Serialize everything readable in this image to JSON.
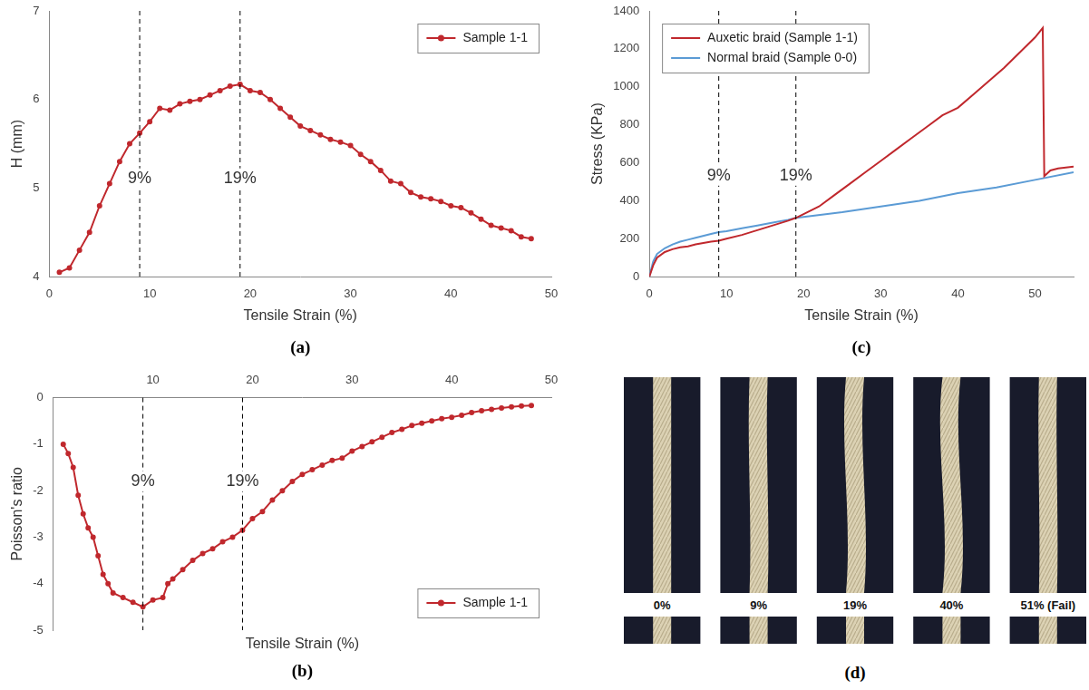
{
  "chart_data": [
    {
      "type": "line",
      "title": "(a)",
      "x_label": "Tensile Strain (%)",
      "y_label": "H (mm)",
      "xlim": [
        0,
        50
      ],
      "xticks": [
        0,
        10,
        20,
        30,
        40,
        50
      ],
      "ylim": [
        4,
        7
      ],
      "yticks": [
        4,
        5,
        6,
        7
      ],
      "grid": false,
      "legend": "upper right",
      "annotations": [
        {
          "x": 9,
          "text": "9%"
        },
        {
          "x": 19,
          "text": "19%"
        }
      ],
      "series": [
        {
          "name": "Sample 1-1",
          "color": "#c0282d",
          "marker": "circle",
          "line_style": "solid",
          "x": [
            1,
            2,
            3,
            4,
            5,
            6,
            7,
            8,
            9,
            10,
            11,
            12,
            13,
            14,
            15,
            16,
            17,
            18,
            19,
            20,
            21,
            22,
            23,
            24,
            25,
            26,
            27,
            28,
            29,
            30,
            31,
            32,
            33,
            34,
            35,
            36,
            37,
            38,
            39,
            40,
            41,
            42,
            43,
            44,
            45,
            46,
            47,
            48
          ],
          "values": [
            4.05,
            4.1,
            4.3,
            4.5,
            4.8,
            5.05,
            5.3,
            5.5,
            5.62,
            5.75,
            5.9,
            5.88,
            5.95,
            5.98,
            6.0,
            6.05,
            6.1,
            6.15,
            6.17,
            6.1,
            6.08,
            6.0,
            5.9,
            5.8,
            5.7,
            5.65,
            5.6,
            5.55,
            5.52,
            5.48,
            5.38,
            5.3,
            5.2,
            5.08,
            5.05,
            4.95,
            4.9,
            4.88,
            4.85,
            4.8,
            4.78,
            4.72,
            4.65,
            4.58,
            4.55,
            4.52,
            4.45,
            4.43
          ]
        }
      ]
    },
    {
      "type": "line",
      "title": "(b)",
      "x_label": "Tensile Strain (%)",
      "y_label": "Poisson's ratio",
      "xlim": [
        0,
        50
      ],
      "xticks": [
        10,
        20,
        30,
        40,
        50
      ],
      "ylim": [
        -5,
        0
      ],
      "yticks": [
        -5,
        -4,
        -3,
        -2,
        -1,
        0
      ],
      "grid": false,
      "legend": "lower right",
      "annotations": [
        {
          "x": 9,
          "text": "9%"
        },
        {
          "x": 19,
          "text": "19%"
        }
      ],
      "series": [
        {
          "name": "Sample 1-1",
          "color": "#c0282d",
          "marker": "circle",
          "line_style": "solid",
          "x": [
            1,
            1.5,
            2,
            2.5,
            3,
            3.5,
            4,
            4.5,
            5,
            5.5,
            6,
            7,
            8,
            9,
            10,
            11,
            11.5,
            12,
            13,
            14,
            15,
            16,
            17,
            18,
            19,
            20,
            21,
            22,
            23,
            24,
            25,
            26,
            27,
            28,
            29,
            30,
            31,
            32,
            33,
            34,
            35,
            36,
            37,
            38,
            39,
            40,
            41,
            42,
            43,
            44,
            45,
            46,
            47,
            48
          ],
          "values": [
            -1.0,
            -1.2,
            -1.5,
            -2.1,
            -2.5,
            -2.8,
            -3.0,
            -3.4,
            -3.8,
            -4.0,
            -4.2,
            -4.3,
            -4.4,
            -4.5,
            -4.35,
            -4.3,
            -4.0,
            -3.9,
            -3.7,
            -3.5,
            -3.35,
            -3.25,
            -3.1,
            -3.0,
            -2.85,
            -2.6,
            -2.45,
            -2.2,
            -2.0,
            -1.8,
            -1.65,
            -1.55,
            -1.45,
            -1.35,
            -1.3,
            -1.15,
            -1.05,
            -0.95,
            -0.85,
            -0.75,
            -0.68,
            -0.6,
            -0.55,
            -0.5,
            -0.45,
            -0.42,
            -0.38,
            -0.32,
            -0.28,
            -0.25,
            -0.22,
            -0.2,
            -0.18,
            -0.17
          ]
        }
      ]
    },
    {
      "type": "line",
      "title": "(c)",
      "x_label": "Tensile Strain (%)",
      "y_label": "Stress (KPa)",
      "xlim": [
        0,
        55
      ],
      "xticks": [
        0,
        10,
        20,
        30,
        40,
        50
      ],
      "ylim": [
        0,
        1400
      ],
      "yticks": [
        0,
        200,
        400,
        600,
        800,
        1000,
        1200,
        1400
      ],
      "grid": false,
      "legend": "upper left",
      "annotations": [
        {
          "x": 9,
          "text": "9%"
        },
        {
          "x": 19,
          "text": "19%"
        }
      ],
      "series": [
        {
          "name": "Auxetic braid (Sample 1-1)",
          "color": "#c0282d",
          "marker": "none",
          "line_style": "solid",
          "x": [
            0,
            0.5,
            1,
            2,
            3,
            4,
            5,
            6,
            7,
            8,
            9,
            10,
            12,
            14,
            16,
            18,
            19,
            20,
            22,
            24,
            26,
            28,
            30,
            32,
            34,
            36,
            38,
            40,
            42,
            44,
            46,
            48,
            50,
            51,
            51.2,
            52,
            53,
            55
          ],
          "values": [
            0,
            60,
            100,
            130,
            145,
            155,
            160,
            170,
            178,
            185,
            190,
            200,
            220,
            245,
            270,
            295,
            310,
            330,
            370,
            430,
            490,
            550,
            610,
            670,
            730,
            790,
            850,
            890,
            960,
            1030,
            1100,
            1180,
            1260,
            1310,
            530,
            560,
            570,
            580
          ]
        },
        {
          "name": "Normal braid (Sample 0-0)",
          "color": "#5b9bd5",
          "marker": "none",
          "line_style": "solid",
          "x": [
            0,
            0.5,
            1,
            2,
            3,
            4,
            5,
            6,
            8,
            9,
            10,
            12,
            14,
            16,
            18,
            19,
            20,
            25,
            30,
            35,
            40,
            45,
            50,
            55
          ],
          "values": [
            0,
            80,
            120,
            150,
            170,
            185,
            195,
            205,
            225,
            235,
            240,
            255,
            270,
            285,
            300,
            310,
            315,
            340,
            370,
            400,
            440,
            470,
            510,
            550
          ]
        }
      ]
    }
  ],
  "photo_panel": {
    "label": "(d)",
    "frames": [
      "0%",
      "9%",
      "19%",
      "40%",
      "51% (Fail)"
    ]
  }
}
